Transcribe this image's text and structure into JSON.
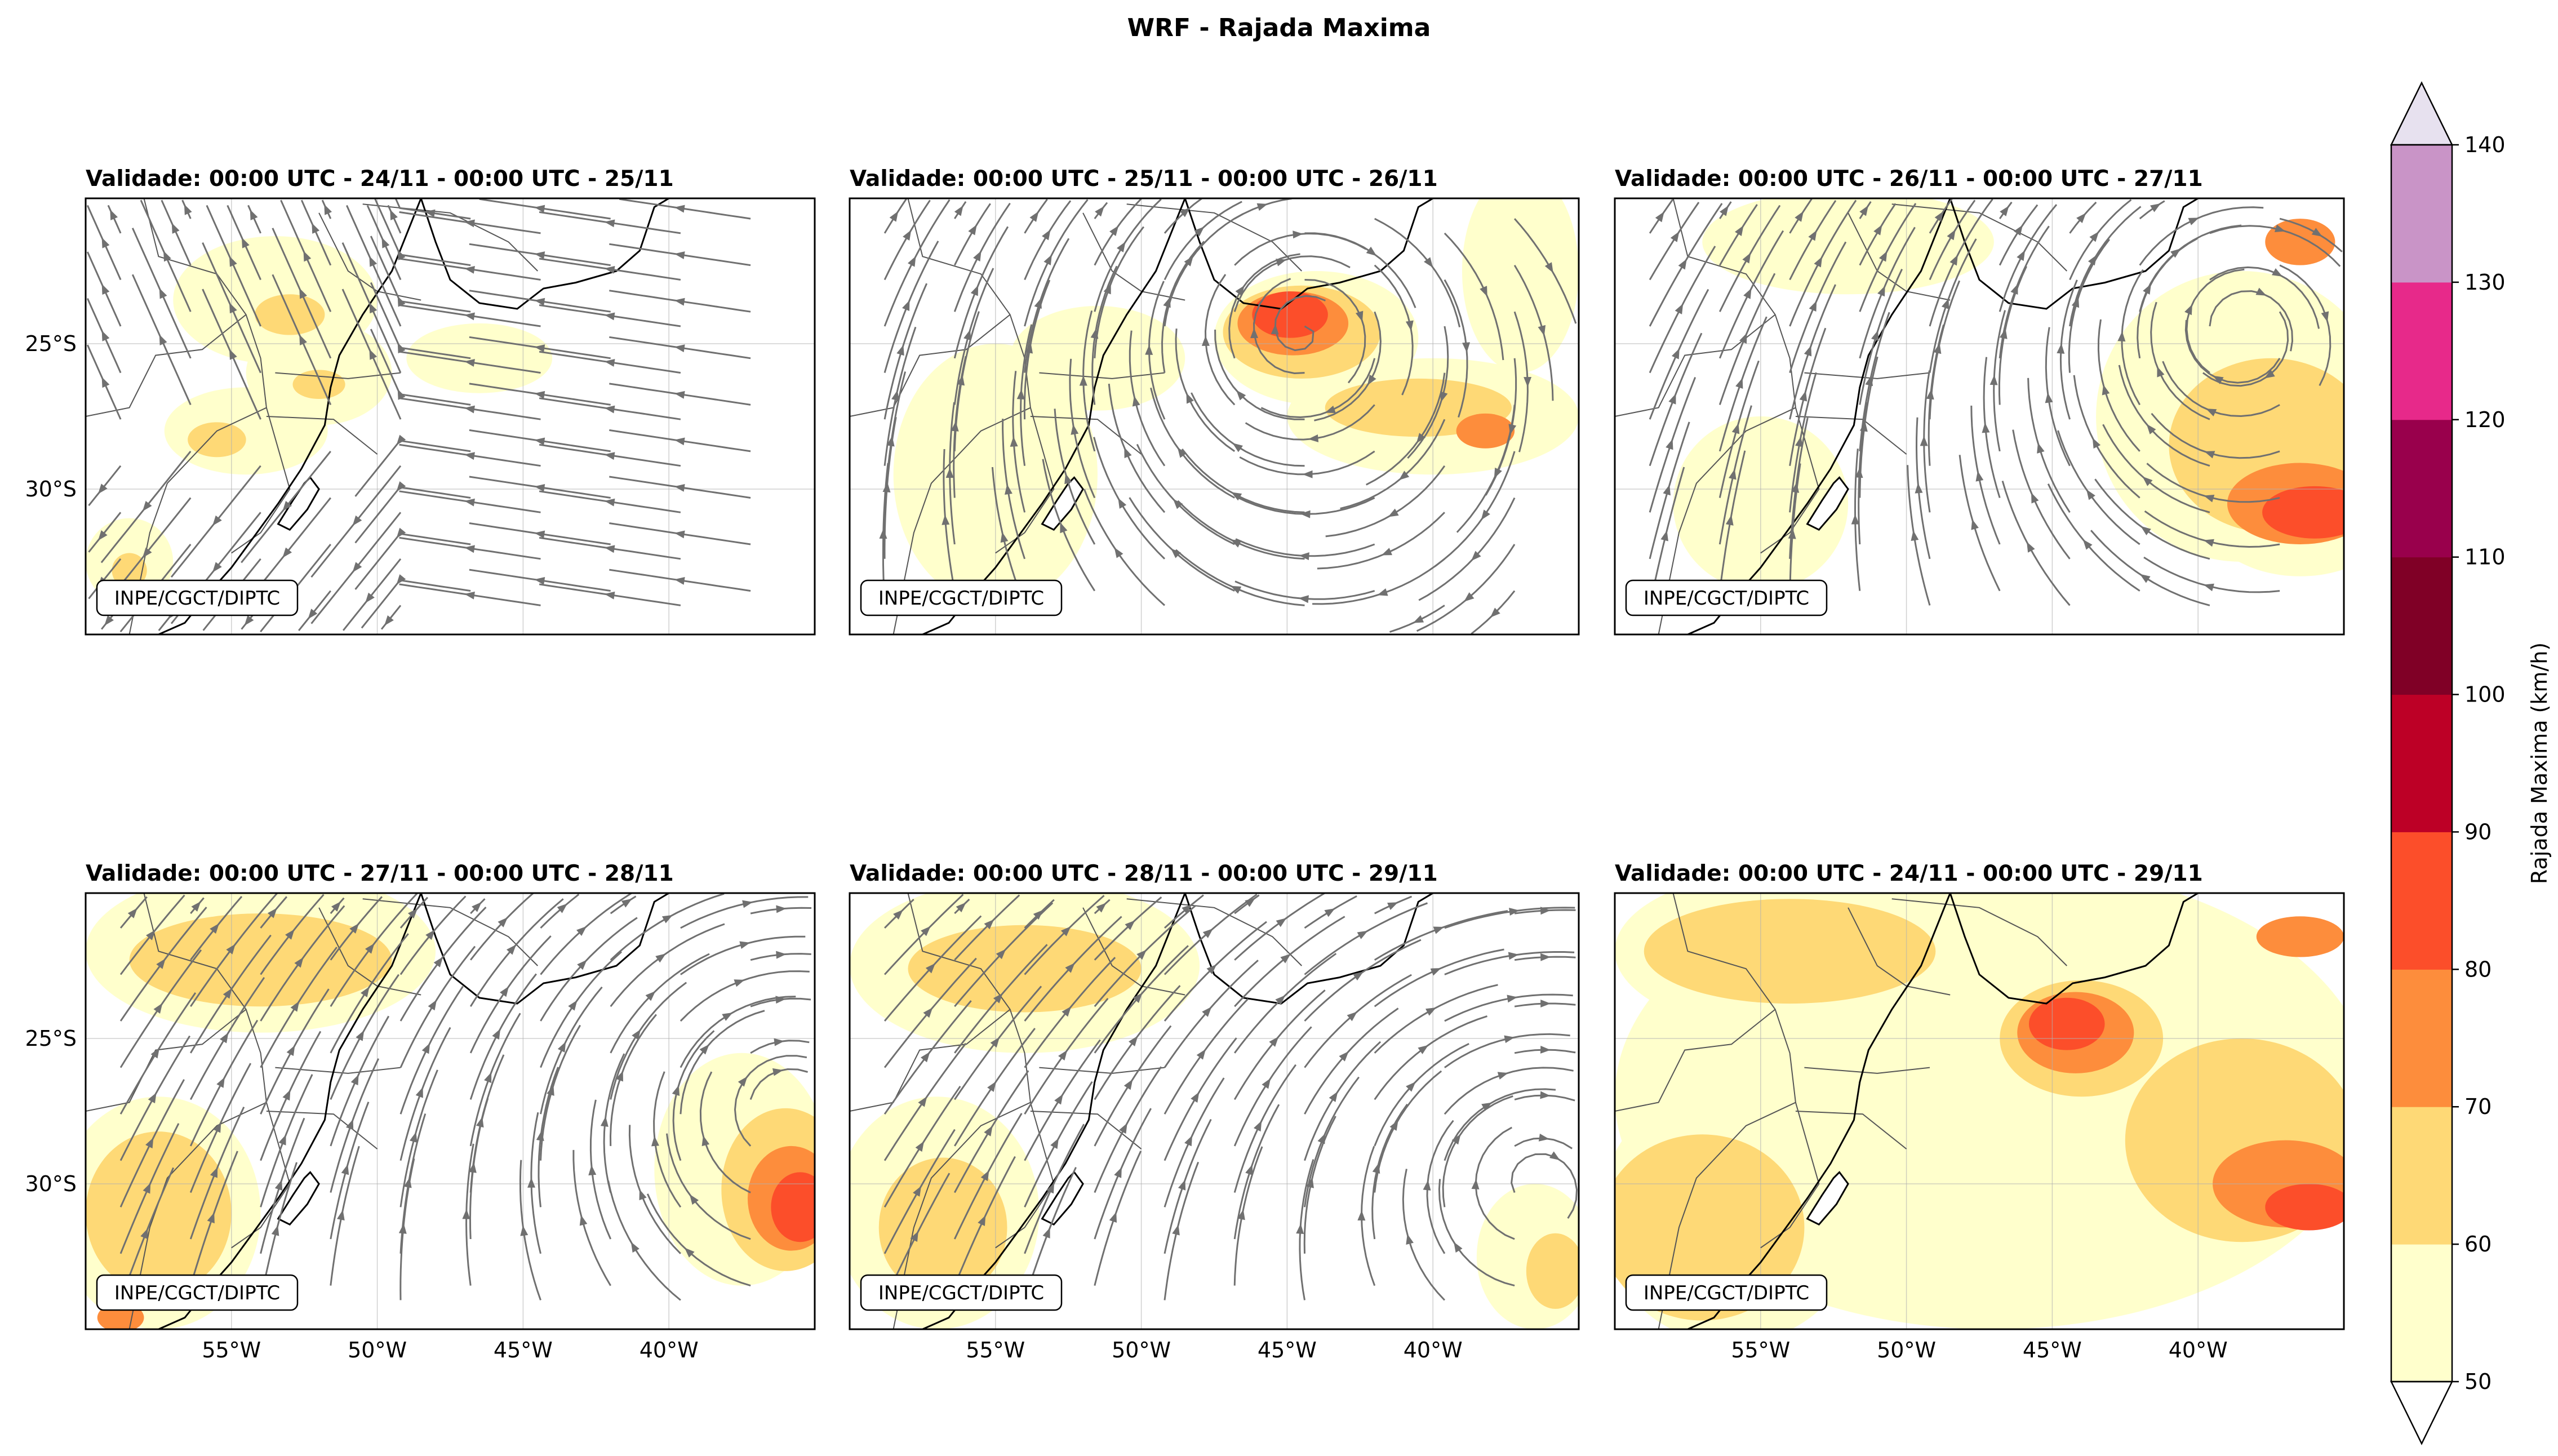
{
  "chart_data": {
    "type": "filled-contour map panels with wind streamlines",
    "title": "WRF - Rajada Maxima",
    "attribution": "INPE/CGCT/DIPTC",
    "x_ticks": [
      "55°W",
      "50°W",
      "45°W",
      "40°W"
    ],
    "x_tick_values": [
      -55,
      -50,
      -45,
      -40
    ],
    "y_ticks": [
      "25°S",
      "30°S"
    ],
    "y_tick_values": [
      -25,
      -30
    ],
    "lon_range": [
      -60,
      -35
    ],
    "lat_range": [
      -35,
      -20
    ],
    "colorbar": {
      "label": "Rajada Maxima (km/h)",
      "levels": [
        50,
        60,
        70,
        80,
        90,
        100,
        110,
        120,
        130,
        140
      ],
      "colors": [
        "#ffffcc",
        "#fed976",
        "#fd8d3c",
        "#fc4e2a",
        "#bd0026",
        "#800026",
        "#99004c",
        "#e7298a",
        "#c994c7"
      ],
      "extend": "both",
      "under_color": "#ffffff",
      "over_color": "#e7e1ef"
    },
    "panels": [
      {
        "title": "Validade: 00:00 UTC - 24/11 - 00:00 UTC - 25/11",
        "flow": {
          "type": "trough_easterly"
        },
        "gust_areas": [
          {
            "lon": -53.5,
            "lat": -23.5,
            "rx": 3.5,
            "ry": 2.2,
            "level": 50
          },
          {
            "lon": -52.0,
            "lat": -26.0,
            "rx": 2.5,
            "ry": 1.8,
            "level": 50
          },
          {
            "lon": -54.5,
            "lat": -28.0,
            "rx": 2.8,
            "ry": 1.5,
            "level": 50
          },
          {
            "lon": -58.5,
            "lat": -32.5,
            "rx": 1.5,
            "ry": 1.5,
            "level": 50
          },
          {
            "lon": -53.0,
            "lat": -24.0,
            "rx": 1.2,
            "ry": 0.7,
            "level": 60
          },
          {
            "lon": -52.0,
            "lat": -26.4,
            "rx": 0.9,
            "ry": 0.5,
            "level": 60
          },
          {
            "lon": -55.5,
            "lat": -28.3,
            "rx": 1.0,
            "ry": 0.6,
            "level": 60
          },
          {
            "lon": -58.5,
            "lat": -32.8,
            "rx": 0.6,
            "ry": 0.6,
            "level": 60
          },
          {
            "lon": -46.5,
            "lat": -25.5,
            "rx": 2.5,
            "ry": 1.2,
            "level": 50
          }
        ]
      },
      {
        "title": "Validade: 00:00 UTC - 25/11 - 00:00 UTC - 26/11",
        "flow": {
          "type": "cyclone",
          "lon": -44.5,
          "lat": -24.5,
          "strength": 1.0
        },
        "gust_areas": [
          {
            "lon": -44.0,
            "lat": -24.8,
            "rx": 3.5,
            "ry": 2.3,
            "level": 50
          },
          {
            "lon": -40.0,
            "lat": -27.5,
            "rx": 5.0,
            "ry": 2.0,
            "level": 50
          },
          {
            "lon": -55.0,
            "lat": -29.5,
            "rx": 3.5,
            "ry": 4.5,
            "level": 50
          },
          {
            "lon": -51.5,
            "lat": -25.5,
            "rx": 3.0,
            "ry": 1.8,
            "level": 50
          },
          {
            "lon": -37.0,
            "lat": -22.5,
            "rx": 2.0,
            "ry": 3.5,
            "level": 50
          },
          {
            "lon": -44.5,
            "lat": -24.6,
            "rx": 2.7,
            "ry": 1.6,
            "level": 60
          },
          {
            "lon": -40.5,
            "lat": -27.2,
            "rx": 3.2,
            "ry": 1.0,
            "level": 60
          },
          {
            "lon": -44.8,
            "lat": -24.3,
            "rx": 1.9,
            "ry": 1.1,
            "level": 70
          },
          {
            "lon": -38.2,
            "lat": -28.0,
            "rx": 1.0,
            "ry": 0.6,
            "level": 70
          },
          {
            "lon": -44.9,
            "lat": -24.0,
            "rx": 1.3,
            "ry": 0.8,
            "level": 80
          }
        ]
      },
      {
        "title": "Validade: 00:00 UTC - 26/11 - 00:00 UTC - 27/11",
        "flow": {
          "type": "cyclone",
          "lon": -38.5,
          "lat": -24.5,
          "strength": 1.0
        },
        "gust_areas": [
          {
            "lon": -38.5,
            "lat": -27.5,
            "rx": 5.0,
            "ry": 5.0,
            "level": 50
          },
          {
            "lon": -36.5,
            "lat": -30.5,
            "rx": 3.5,
            "ry": 2.5,
            "level": 50
          },
          {
            "lon": -52.0,
            "lat": -21.5,
            "rx": 5.0,
            "ry": 1.8,
            "level": 50
          },
          {
            "lon": -55.0,
            "lat": -30.5,
            "rx": 3.0,
            "ry": 3.0,
            "level": 50
          },
          {
            "lon": -37.5,
            "lat": -28.5,
            "rx": 3.5,
            "ry": 3.0,
            "level": 60
          },
          {
            "lon": -36.5,
            "lat": -30.5,
            "rx": 2.5,
            "ry": 1.4,
            "level": 70
          },
          {
            "lon": -36.0,
            "lat": -30.8,
            "rx": 1.8,
            "ry": 0.9,
            "level": 80
          },
          {
            "lon": -36.5,
            "lat": -21.5,
            "rx": 1.2,
            "ry": 0.8,
            "level": 70
          }
        ]
      },
      {
        "title": "Validade: 00:00 UTC - 27/11 - 00:00 UTC - 28/11",
        "flow": {
          "type": "cyclone",
          "lon": -36.0,
          "lat": -27.5,
          "strength": 1.0
        },
        "gust_areas": [
          {
            "lon": -37.5,
            "lat": -29.5,
            "rx": 3.0,
            "ry": 4.0,
            "level": 50
          },
          {
            "lon": -36.0,
            "lat": -30.2,
            "rx": 2.2,
            "ry": 2.8,
            "level": 60
          },
          {
            "lon": -35.8,
            "lat": -30.5,
            "rx": 1.5,
            "ry": 1.8,
            "level": 70
          },
          {
            "lon": -35.5,
            "lat": -30.8,
            "rx": 1.0,
            "ry": 1.2,
            "level": 80
          },
          {
            "lon": -54.0,
            "lat": -22.0,
            "rx": 6.0,
            "ry": 2.8,
            "level": 50
          },
          {
            "lon": -54.0,
            "lat": -22.3,
            "rx": 4.5,
            "ry": 1.6,
            "level": 60
          },
          {
            "lon": -57.5,
            "lat": -31.0,
            "rx": 3.5,
            "ry": 4.0,
            "level": 50
          },
          {
            "lon": -57.5,
            "lat": -31.0,
            "rx": 2.5,
            "ry": 2.8,
            "level": 60
          },
          {
            "lon": -58.8,
            "lat": -34.6,
            "rx": 0.8,
            "ry": 0.5,
            "level": 70
          }
        ]
      },
      {
        "title": "Validade: 00:00 UTC - 28/11 - 00:00 UTC - 29/11",
        "flow": {
          "type": "cyclone",
          "lon": -36.5,
          "lat": -30.0,
          "strength": 0.9
        },
        "gust_areas": [
          {
            "lon": -54.0,
            "lat": -22.5,
            "rx": 6.0,
            "ry": 3.0,
            "level": 50
          },
          {
            "lon": -54.0,
            "lat": -22.6,
            "rx": 4.0,
            "ry": 1.5,
            "level": 60
          },
          {
            "lon": -57.0,
            "lat": -31.0,
            "rx": 3.5,
            "ry": 4.0,
            "level": 50
          },
          {
            "lon": -56.8,
            "lat": -31.5,
            "rx": 2.2,
            "ry": 2.4,
            "level": 60
          },
          {
            "lon": -36.5,
            "lat": -32.5,
            "rx": 2.0,
            "ry": 2.5,
            "level": 50
          },
          {
            "lon": -35.8,
            "lat": -33.0,
            "rx": 1.0,
            "ry": 1.3,
            "level": 60
          }
        ]
      },
      {
        "title": "Validade: 00:00 UTC - 24/11 - 00:00 UTC - 29/11",
        "flow": {
          "type": "none"
        },
        "gust_areas": [
          {
            "lon": -47.0,
            "lat": -27.0,
            "rx": 13.0,
            "ry": 8.0,
            "level": 50
          },
          {
            "lon": -54.0,
            "lat": -22.0,
            "rx": 6.0,
            "ry": 2.8,
            "level": 50
          },
          {
            "lon": -56.0,
            "lat": -31.0,
            "rx": 4.5,
            "ry": 4.5,
            "level": 50
          },
          {
            "lon": -54.0,
            "lat": -22.0,
            "rx": 5.0,
            "ry": 1.8,
            "level": 60
          },
          {
            "lon": -57.0,
            "lat": -31.5,
            "rx": 3.5,
            "ry": 3.2,
            "level": 60
          },
          {
            "lon": -38.5,
            "lat": -28.5,
            "rx": 4.0,
            "ry": 3.5,
            "level": 60
          },
          {
            "lon": -44.0,
            "lat": -25.0,
            "rx": 2.8,
            "ry": 2.0,
            "level": 60
          },
          {
            "lon": -44.2,
            "lat": -24.8,
            "rx": 2.0,
            "ry": 1.4,
            "level": 70
          },
          {
            "lon": -44.5,
            "lat": -24.5,
            "rx": 1.3,
            "ry": 0.9,
            "level": 80
          },
          {
            "lon": -37.0,
            "lat": -30.0,
            "rx": 2.5,
            "ry": 1.5,
            "level": 70
          },
          {
            "lon": -36.2,
            "lat": -30.8,
            "rx": 1.5,
            "ry": 0.8,
            "level": 80
          },
          {
            "lon": -36.5,
            "lat": -21.5,
            "rx": 1.5,
            "ry": 0.7,
            "level": 70
          }
        ]
      }
    ]
  },
  "map_features": {
    "coastline": [
      [
        -48.5,
        -20
      ],
      [
        -48.0,
        -21.5
      ],
      [
        -47.5,
        -22.8
      ],
      [
        -46.5,
        -23.6
      ],
      [
        -45.2,
        -23.8
      ],
      [
        -44.3,
        -23.1
      ],
      [
        -43.2,
        -22.9
      ],
      [
        -41.8,
        -22.5
      ],
      [
        -41.0,
        -21.8
      ],
      [
        -40.5,
        -20.3
      ],
      [
        -40.0,
        -20
      ]
    ],
    "coastline_south": [
      [
        -48.5,
        -20
      ],
      [
        -49.5,
        -22.5
      ],
      [
        -50.5,
        -24.0
      ],
      [
        -51.3,
        -25.4
      ],
      [
        -51.6,
        -26.5
      ],
      [
        -51.8,
        -27.8
      ],
      [
        -52.6,
        -29.3
      ],
      [
        -53.4,
        -30.5
      ],
      [
        -54.2,
        -31.6
      ],
      [
        -55.0,
        -32.7
      ],
      [
        -55.8,
        -33.6
      ],
      [
        -56.6,
        -34.6
      ],
      [
        -57.5,
        -35
      ]
    ],
    "lagoon": [
      [
        -52.3,
        -29.6
      ],
      [
        -52.0,
        -30.0
      ],
      [
        -52.4,
        -30.7
      ],
      [
        -53.0,
        -31.4
      ],
      [
        -53.4,
        -31.2
      ],
      [
        -52.9,
        -30.4
      ],
      [
        -52.5,
        -29.8
      ]
    ],
    "borders": [
      [
        [
          -58.0,
          -20
        ],
        [
          -57.5,
          -22.0
        ],
        [
          -55.5,
          -22.6
        ],
        [
          -54.5,
          -24.0
        ],
        [
          -54.0,
          -25.5
        ],
        [
          -53.8,
          -27.2
        ],
        [
          -55.5,
          -28.0
        ],
        [
          -57.2,
          -29.8
        ],
        [
          -57.8,
          -31.5
        ],
        [
          -58.2,
          -33.5
        ],
        [
          -58.5,
          -35
        ]
      ],
      [
        [
          -54.5,
          -24.0
        ],
        [
          -56.0,
          -25.2
        ],
        [
          -57.6,
          -25.4
        ],
        [
          -58.5,
          -27.2
        ],
        [
          -60,
          -27.5
        ]
      ],
      [
        [
          -53.8,
          -27.2
        ],
        [
          -53.0,
          -30.0
        ],
        [
          -54.0,
          -31.5
        ],
        [
          -55.0,
          -32.2
        ]
      ],
      [
        [
          -52.0,
          -20.5
        ],
        [
          -51.0,
          -22.5
        ],
        [
          -50.0,
          -23.2
        ],
        [
          -48.5,
          -23.5
        ]
      ],
      [
        [
          -53.5,
          -26.0
        ],
        [
          -51.0,
          -26.2
        ],
        [
          -49.2,
          -26.0
        ]
      ],
      [
        [
          -53.8,
          -27.5
        ],
        [
          -51.5,
          -27.6
        ],
        [
          -50.0,
          -28.8
        ]
      ],
      [
        [
          -50.5,
          -20.2
        ],
        [
          -47.5,
          -20.5
        ],
        [
          -45.5,
          -21.5
        ],
        [
          -44.5,
          -22.5
        ]
      ]
    ]
  }
}
